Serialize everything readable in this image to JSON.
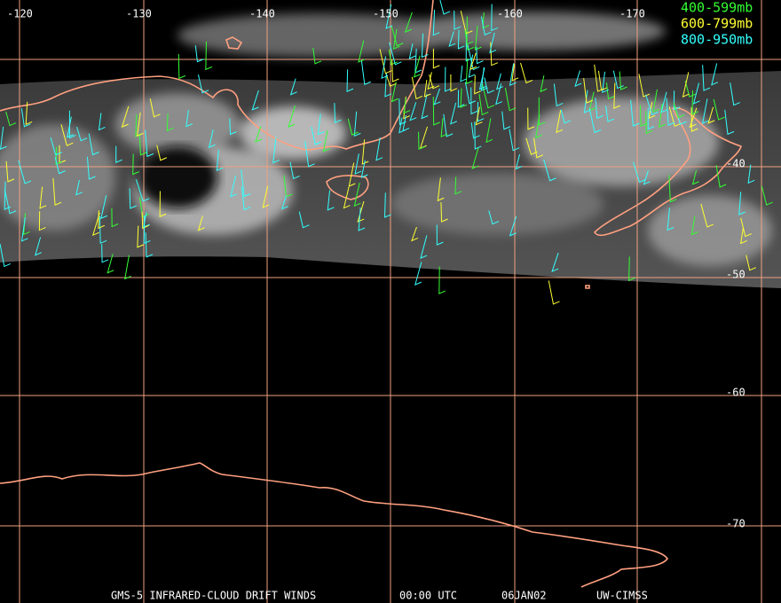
{
  "map": {
    "longitude_labels": [
      "-120",
      "-130",
      "-140",
      "-150",
      "-160",
      "-170"
    ],
    "latitude_labels": [
      "-40",
      "-50",
      "-60",
      "-70"
    ],
    "legend": [
      "400-599mb",
      "600-799mb",
      "800-950mb"
    ],
    "footer": [
      "GMS-5 INFRARED-CLOUD DRIFT WINDS",
      "00:00 UTC",
      "06JAN02",
      "UW-CIMSS"
    ]
  }
}
